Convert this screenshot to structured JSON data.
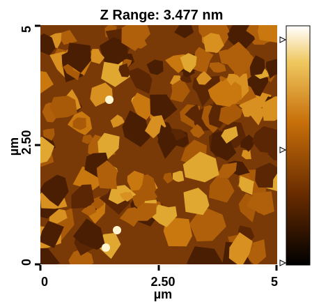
{
  "title": "Z Range:  3.477 nm",
  "x_axis": {
    "ticks": [
      "0",
      "2.50",
      "5"
    ],
    "label": "µm"
  },
  "y_axis": {
    "ticks": [
      "0",
      "2.50",
      "5"
    ],
    "label": "µm"
  }
}
